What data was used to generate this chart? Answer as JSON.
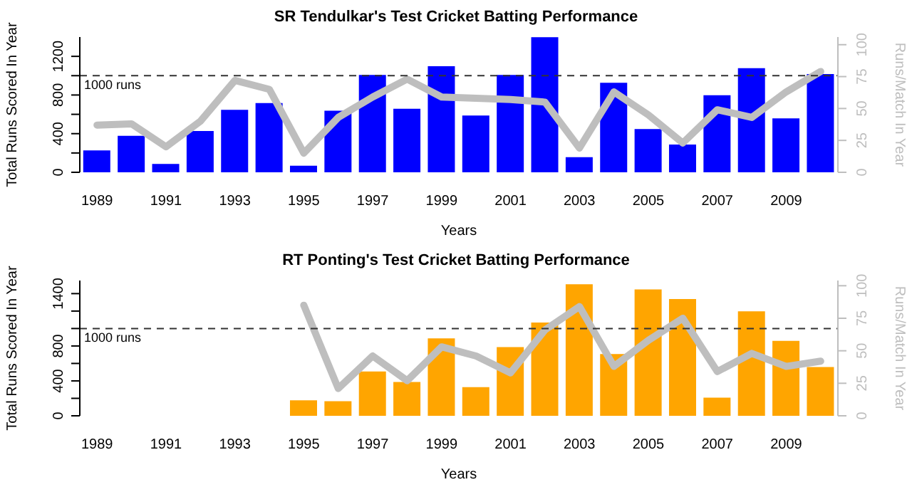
{
  "chart_data": [
    {
      "type": "bar",
      "title": "SR Tendulkar's Test Cricket Batting Performance",
      "xlabel": "Years",
      "ylabel": "Total Runs Scored In Year",
      "y2label": "Runs/Match In Year",
      "categories": [
        "1989",
        null,
        "1991",
        null,
        "1993",
        null,
        "1995",
        null,
        "1997",
        null,
        "1999",
        null,
        "2001",
        null,
        "2003",
        null,
        "2005",
        null,
        "2007",
        null,
        "2009",
        null
      ],
      "series": [
        {
          "color": "#0000ff",
          "values": [
            220,
            370,
            80,
            420,
            640,
            710,
            60,
            630,
            1000,
            650,
            1090,
            580,
            1000,
            1390,
            150,
            920,
            440,
            280,
            790,
            1070,
            550,
            1010
          ]
        },
        {
          "type": "line",
          "axis": "y2",
          "color": "#bebebe",
          "values": [
            37,
            38,
            20,
            40,
            72,
            65,
            15,
            43,
            59,
            73,
            59,
            58,
            57,
            55,
            19,
            63,
            45,
            23,
            49,
            43,
            63,
            79
          ]
        }
      ],
      "ylim": [
        0,
        1400
      ],
      "yticks": [
        0,
        {
          "value": 200,
          "label": null
        },
        400,
        {
          "value": 600,
          "label": null
        },
        800,
        {
          "value": 1000,
          "label": null
        },
        1200
      ],
      "y2lim": [
        0,
        106
      ],
      "y2ticks": [
        0,
        25,
        50,
        75,
        100
      ],
      "ref_lines": [
        {
          "axis": "y",
          "value": 1000,
          "label": "1000 runs",
          "color": "#333333",
          "line_style": "dashed"
        }
      ],
      "grid": false,
      "legend": false
    },
    {
      "type": "bar",
      "title": "RT Ponting's Test Cricket Batting Performance",
      "xlabel": "Years",
      "ylabel": "Total Runs Scored In Year",
      "y2label": "Runs/Match In Year",
      "categories": [
        "1989",
        null,
        "1991",
        null,
        "1993",
        null,
        "1995",
        null,
        "1997",
        null,
        "1999",
        null,
        "2001",
        null,
        "2003",
        null,
        "2005",
        null,
        "2007",
        null,
        "2009",
        null
      ],
      "series": [
        {
          "color": "#ffa500",
          "values": [
            null,
            null,
            null,
            null,
            null,
            null,
            170,
            160,
            500,
            380,
            880,
            320,
            780,
            1060,
            1500,
            700,
            1440,
            1330,
            200,
            1190,
            850,
            550
          ]
        },
        {
          "type": "line",
          "axis": "y2",
          "color": "#bebebe",
          "values": [
            null,
            null,
            null,
            null,
            null,
            null,
            85,
            21,
            46,
            27,
            53,
            46,
            33,
            66,
            84,
            38,
            58,
            75,
            34,
            48,
            38,
            42
          ]
        }
      ],
      "ylim": [
        0,
        1550
      ],
      "yticks": [
        0,
        {
          "value": 200,
          "label": null
        },
        400,
        {
          "value": 600,
          "label": null
        },
        800,
        {
          "value": 1000,
          "label": null
        },
        {
          "value": 1200,
          "label": null
        },
        1400
      ],
      "y2lim": [
        0,
        104
      ],
      "y2ticks": [
        0,
        25,
        50,
        75,
        100
      ],
      "ref_lines": [
        {
          "axis": "y",
          "value": 1000,
          "label": "1000 runs",
          "color": "#333333",
          "line_style": "dashed"
        }
      ],
      "grid": false,
      "legend": false
    }
  ]
}
